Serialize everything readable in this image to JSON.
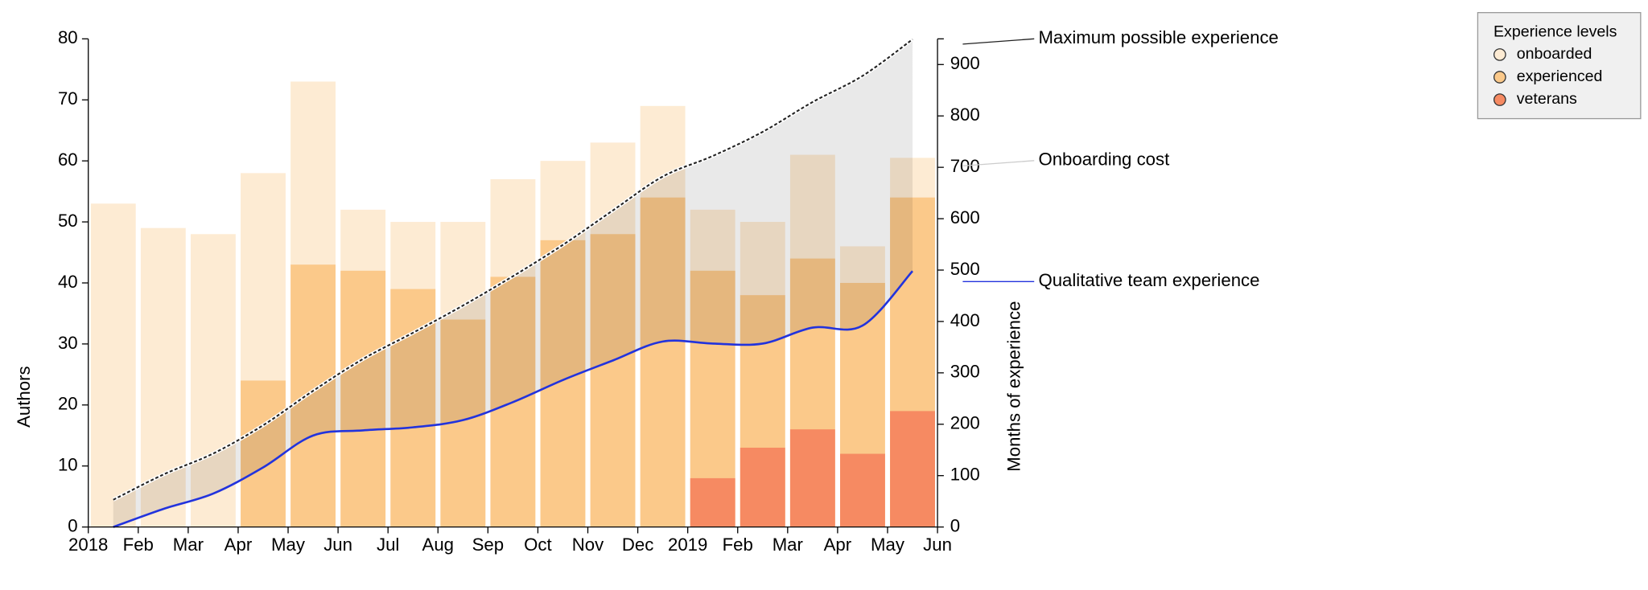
{
  "chart_data": {
    "type": "bar",
    "x": [
      "2018-01",
      "2018-02",
      "2018-03",
      "2018-04",
      "2018-05",
      "2018-06",
      "2018-07",
      "2018-08",
      "2018-09",
      "2018-10",
      "2018-11",
      "2018-12",
      "2019-01",
      "2019-02",
      "2019-03",
      "2019-04",
      "2019-05"
    ],
    "xlim": [
      "2018-01",
      "2019-06"
    ],
    "xticks": [
      {
        "value": "2018-01",
        "label": "2018"
      },
      {
        "value": "2018-02",
        "label": "Feb"
      },
      {
        "value": "2018-03",
        "label": "Mar"
      },
      {
        "value": "2018-04",
        "label": "Apr"
      },
      {
        "value": "2018-05",
        "label": "May"
      },
      {
        "value": "2018-06",
        "label": "Jun"
      },
      {
        "value": "2018-07",
        "label": "Jul"
      },
      {
        "value": "2018-08",
        "label": "Aug"
      },
      {
        "value": "2018-09",
        "label": "Sep"
      },
      {
        "value": "2018-10",
        "label": "Oct"
      },
      {
        "value": "2018-11",
        "label": "Nov"
      },
      {
        "value": "2018-12",
        "label": "Dec"
      },
      {
        "value": "2019-01",
        "label": "2019"
      },
      {
        "value": "2019-02",
        "label": "Feb"
      },
      {
        "value": "2019-03",
        "label": "Mar"
      },
      {
        "value": "2019-04",
        "label": "Apr"
      },
      {
        "value": "2019-05",
        "label": "May"
      },
      {
        "value": "2019-06",
        "label": "Jun"
      }
    ],
    "ylabel": "Authors",
    "ylim": [
      0,
      80
    ],
    "yticks": [
      0,
      10,
      20,
      30,
      40,
      50,
      60,
      70,
      80
    ],
    "y2label": "Months of experience",
    "y2lim": [
      0,
      950
    ],
    "y2ticks": [
      0,
      100,
      200,
      300,
      400,
      500,
      600,
      700,
      800,
      900
    ],
    "legend_title": "Experience levels",
    "legend": "top-right",
    "series": [
      {
        "name": "onboarded",
        "color": "#fdebd3",
        "values": [
          53,
          49,
          48,
          58,
          73,
          52,
          50,
          50,
          57,
          60,
          63,
          69,
          52,
          50,
          61,
          46,
          60.5
        ]
      },
      {
        "name": "experienced",
        "color": "#fbc98a",
        "values": [
          0,
          0,
          0,
          24,
          43,
          42,
          39,
          34,
          41,
          47,
          48,
          54,
          42,
          38,
          44,
          40,
          54
        ]
      },
      {
        "name": "veterans",
        "color": "#f68a62",
        "values": [
          0,
          0,
          0,
          0,
          0,
          0,
          0,
          0,
          0,
          0,
          0,
          0,
          8,
          13,
          16,
          12,
          19
        ]
      }
    ],
    "lines": [
      {
        "label": "Maximum possible experience",
        "color": "#222222",
        "dashed": true,
        "axis": "y2",
        "values": [
          53,
          102,
          143,
          198,
          265,
          327,
          378,
          431,
          488,
          549,
          616,
          682,
          722,
          769,
          827,
          878,
          949
        ]
      },
      {
        "label": "Qualitative team experience",
        "color": "#2233dd",
        "dashed": false,
        "axis": "y2",
        "values": [
          0,
          35,
          65,
          116,
          178,
          188,
          194,
          208,
          243,
          286,
          324,
          361,
          357,
          357,
          388,
          392,
          498
        ]
      }
    ],
    "area_label": "Onboarding cost"
  }
}
